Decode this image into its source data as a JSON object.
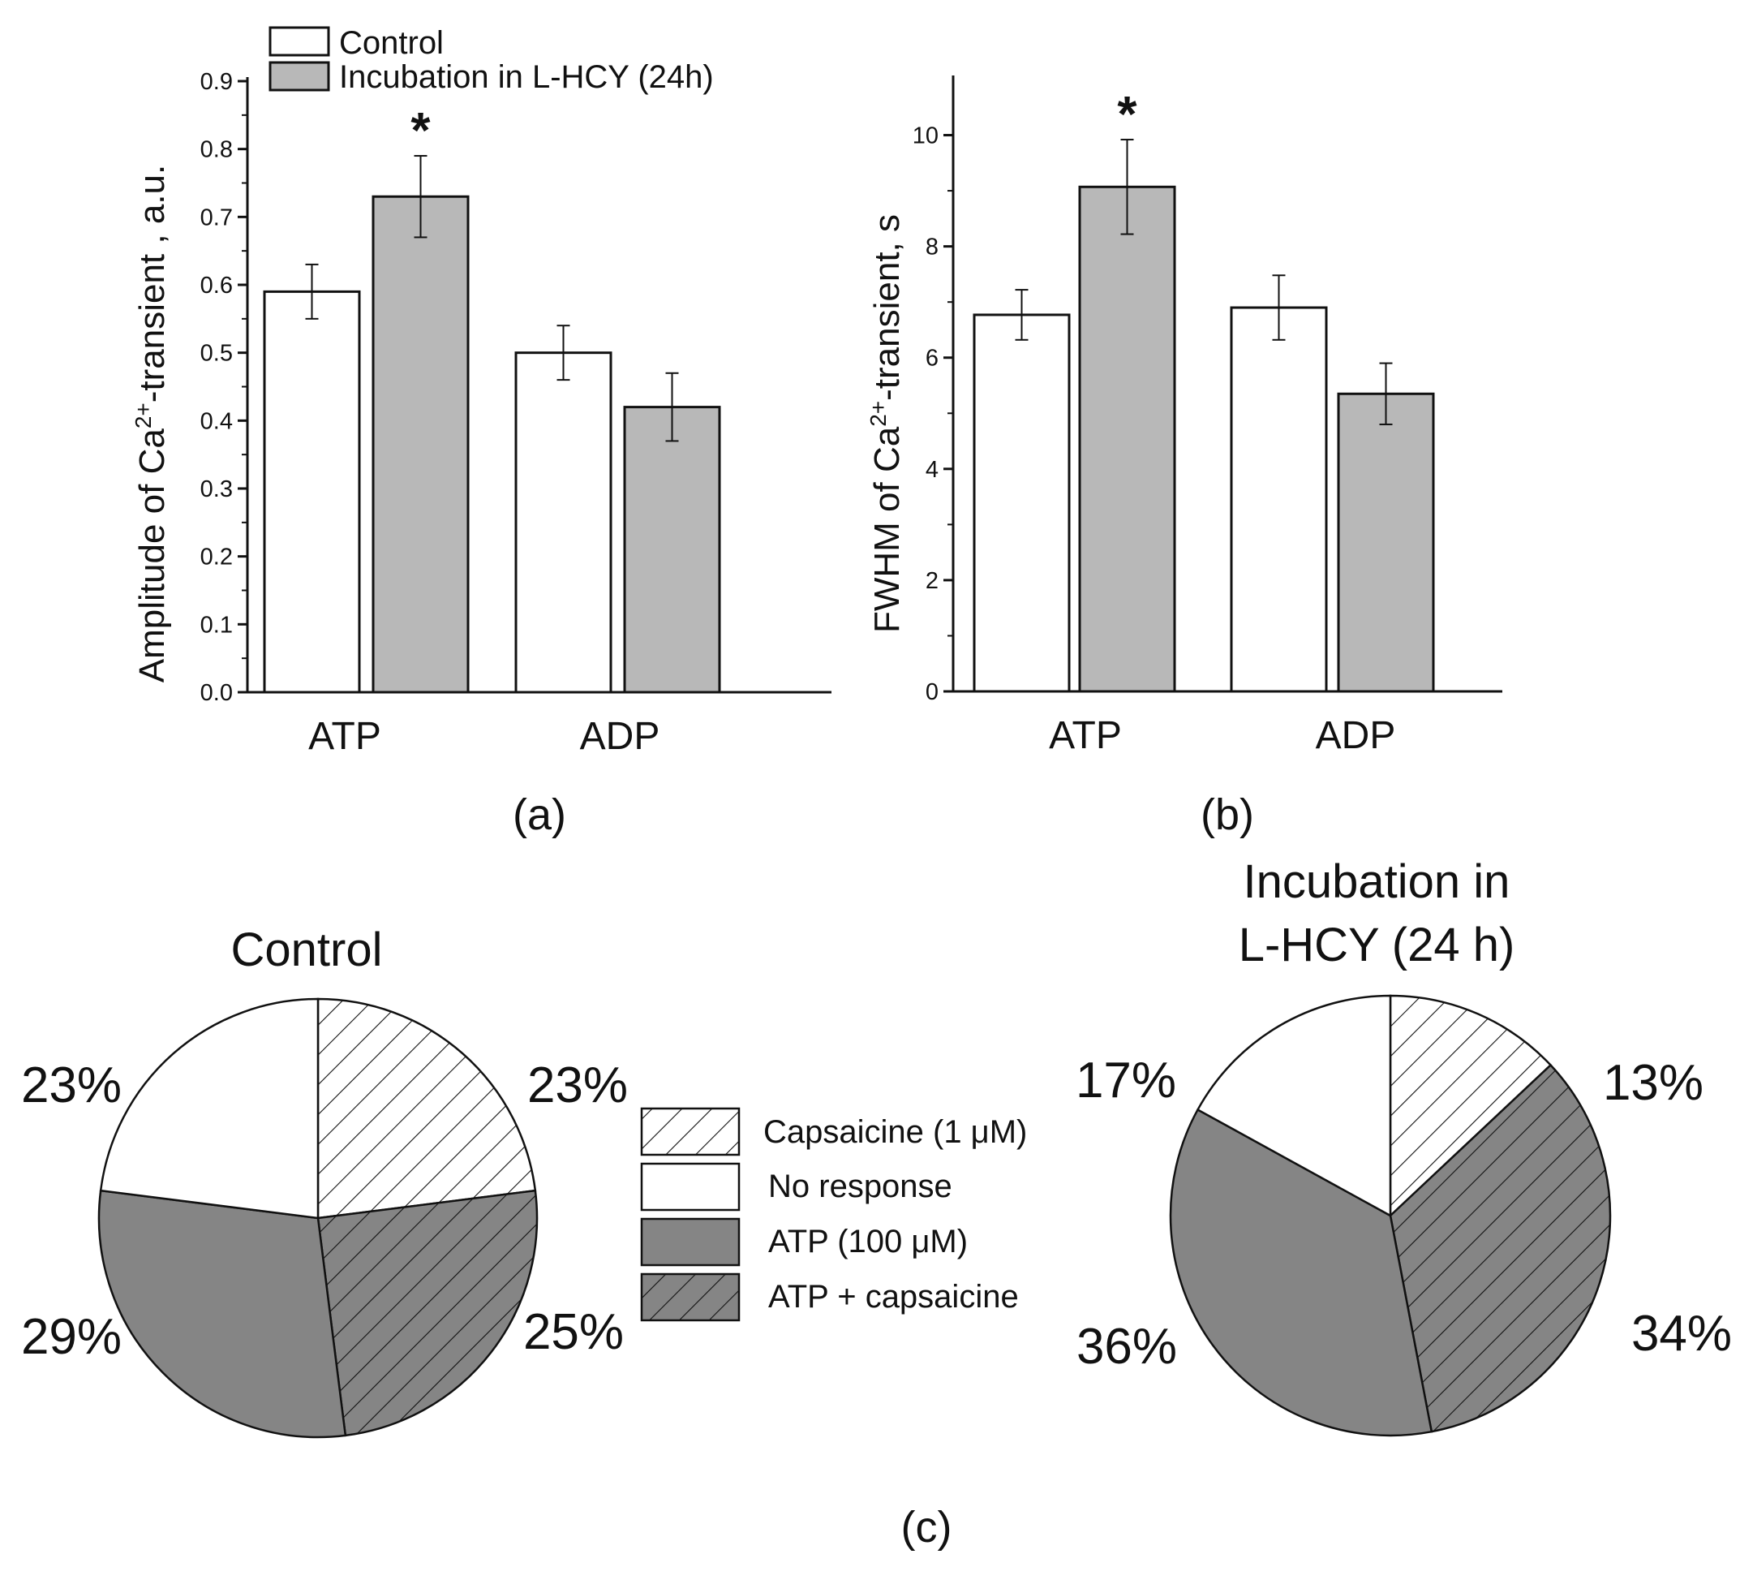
{
  "chart_data": [
    {
      "panel_label": "(a)",
      "type": "bar",
      "categories": [
        "ATP",
        "ADP"
      ],
      "series": [
        {
          "name": "Control",
          "values": [
            0.59,
            0.5
          ],
          "errors": [
            0.04,
            0.04
          ],
          "color": "#ffffff"
        },
        {
          "name": "Incubation in L-HCY (24h)",
          "values": [
            0.73,
            0.42
          ],
          "errors": [
            0.06,
            0.05
          ],
          "color": "#b8b8b8"
        }
      ],
      "ylabel_pre": "Amplitude of Ca",
      "ylabel_sup": "2+",
      "ylabel_post": "-transient , a.u.",
      "ylim": [
        0,
        0.9
      ],
      "yticks": [
        "0.0",
        "0.1",
        "0.2",
        "0.3",
        "0.4",
        "0.5",
        "0.6",
        "0.7",
        "0.8",
        "0.9"
      ],
      "significance": {
        "category": "ATP",
        "series": 1,
        "mark": "*"
      },
      "legend": [
        "Control",
        "Incubation in L-HCY (24h)"
      ]
    },
    {
      "panel_label": "(b)",
      "type": "bar",
      "categories": [
        "ATP",
        "ADP"
      ],
      "series": [
        {
          "name": "Control",
          "values": [
            6.77,
            6.9
          ],
          "errors": [
            0.45,
            0.58
          ],
          "color": "#ffffff"
        },
        {
          "name": "Incubation in L-HCY (24h)",
          "values": [
            9.07,
            5.35
          ],
          "errors": [
            0.85,
            0.55
          ],
          "color": "#b8b8b8"
        }
      ],
      "ylabel_pre": "FWHM of Ca",
      "ylabel_sup": "2+",
      "ylabel_post": "-transient, s",
      "ylim": [
        0,
        11
      ],
      "yticks": [
        "0",
        "2",
        "4",
        "6",
        "8",
        "10"
      ],
      "significance": {
        "category": "ATP",
        "series": 1,
        "mark": "*"
      }
    },
    {
      "panel_label": "(c)",
      "type": "pie",
      "legend": [
        {
          "label": "Capsaicine (1 μM)",
          "fill": "#ffffff",
          "hatch": true
        },
        {
          "label": "No response",
          "fill": "#ffffff",
          "hatch": false
        },
        {
          "label": "ATP (100 μM)",
          "fill": "#858585",
          "hatch": false
        },
        {
          "label": "ATP + capsaicine",
          "fill": "#858585",
          "hatch": true
        }
      ],
      "pies": [
        {
          "title": [
            "Control"
          ],
          "slices": [
            {
              "name": "Capsaicine (1 μM)",
              "value": 23,
              "label": "23%"
            },
            {
              "name": "ATP + capsaicine",
              "value": 25,
              "label": "25%"
            },
            {
              "name": "ATP (100 μM)",
              "value": 29,
              "label": "29%"
            },
            {
              "name": "No response",
              "value": 23,
              "label": "23%"
            }
          ]
        },
        {
          "title": [
            "Incubation in",
            "L-HCY (24 h)"
          ],
          "slices": [
            {
              "name": "Capsaicine (1 μM)",
              "value": 13,
              "label": "13%"
            },
            {
              "name": "ATP + capsaicine",
              "value": 34,
              "label": "34%"
            },
            {
              "name": "ATP (100 μM)",
              "value": 36,
              "label": "36%"
            },
            {
              "name": "No response",
              "value": 17,
              "label": "17%"
            }
          ]
        }
      ]
    }
  ]
}
